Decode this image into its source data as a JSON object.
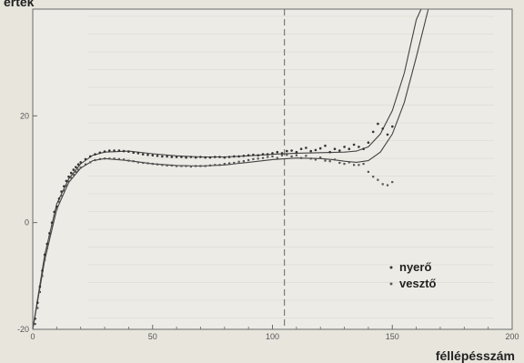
{
  "chart_data": {
    "type": "scatter",
    "ylabel_top": "érték",
    "xlabel": "féllépésszám",
    "xlim": [
      0,
      200
    ],
    "ylim": [
      -20,
      40
    ],
    "x_ticks": [
      0,
      50,
      100,
      150,
      200
    ],
    "y_ticks": [
      -20,
      0,
      20
    ],
    "marker_x": 105,
    "series": [
      {
        "name": "nyerő",
        "points": [
          [
            1,
            -18
          ],
          [
            2,
            -15
          ],
          [
            3,
            -12
          ],
          [
            4,
            -9
          ],
          [
            5,
            -6
          ],
          [
            6,
            -4
          ],
          [
            7,
            -2
          ],
          [
            8,
            0
          ],
          [
            9,
            2
          ],
          [
            10,
            3
          ],
          [
            11,
            4.5
          ],
          [
            12,
            5.8
          ],
          [
            13,
            6.8
          ],
          [
            14,
            7.8
          ],
          [
            15,
            8.6
          ],
          [
            16,
            9.3
          ],
          [
            17,
            9.9
          ],
          [
            18,
            10.4
          ],
          [
            19,
            10.9
          ],
          [
            20,
            11.3
          ],
          [
            22,
            11.9
          ],
          [
            24,
            12.4
          ],
          [
            26,
            12.8
          ],
          [
            28,
            13.1
          ],
          [
            30,
            13.3
          ],
          [
            32,
            13.5
          ],
          [
            34,
            13.5
          ],
          [
            36,
            13.5
          ],
          [
            38,
            13.4
          ],
          [
            40,
            13.3
          ],
          [
            42,
            13.1
          ],
          [
            44,
            13
          ],
          [
            46,
            12.8
          ],
          [
            48,
            12.7
          ],
          [
            50,
            12.6
          ],
          [
            52,
            12.5
          ],
          [
            54,
            12.4
          ],
          [
            56,
            12.4
          ],
          [
            58,
            12.3
          ],
          [
            60,
            12.3
          ],
          [
            62,
            12.3
          ],
          [
            64,
            12.2
          ],
          [
            66,
            12.3
          ],
          [
            68,
            12.2
          ],
          [
            70,
            12.3
          ],
          [
            72,
            12.2
          ],
          [
            74,
            12.2
          ],
          [
            76,
            12.3
          ],
          [
            78,
            12.3
          ],
          [
            80,
            12.2
          ],
          [
            82,
            12.3
          ],
          [
            84,
            12.4
          ],
          [
            86,
            12.4
          ],
          [
            88,
            12.5
          ],
          [
            90,
            12.6
          ],
          [
            92,
            12.7
          ],
          [
            94,
            12.6
          ],
          [
            96,
            12.8
          ],
          [
            98,
            12.8
          ],
          [
            100,
            13
          ],
          [
            102,
            13.2
          ],
          [
            104,
            13
          ],
          [
            106,
            13.4
          ],
          [
            108,
            13.5
          ],
          [
            110,
            13.2
          ],
          [
            112,
            13.8
          ],
          [
            114,
            14
          ],
          [
            116,
            13.4
          ],
          [
            118,
            13.6
          ],
          [
            120,
            13.9
          ],
          [
            122,
            14.4
          ],
          [
            124,
            13.2
          ],
          [
            126,
            13.8
          ],
          [
            128,
            13.5
          ],
          [
            130,
            14.2
          ],
          [
            132,
            13.8
          ],
          [
            134,
            14.6
          ],
          [
            136,
            14.2
          ],
          [
            138,
            13.8
          ],
          [
            140,
            15
          ],
          [
            142,
            17
          ],
          [
            144,
            18.5
          ],
          [
            146,
            17.6
          ],
          [
            148,
            16.5
          ],
          [
            150,
            18
          ]
        ],
        "fit_curve": [
          [
            0,
            -20
          ],
          [
            5,
            -6
          ],
          [
            10,
            3.5
          ],
          [
            15,
            8.2
          ],
          [
            20,
            11
          ],
          [
            25,
            12.6
          ],
          [
            30,
            13.2
          ],
          [
            40,
            13.4
          ],
          [
            50,
            12.9
          ],
          [
            60,
            12.5
          ],
          [
            70,
            12.3
          ],
          [
            80,
            12.3
          ],
          [
            90,
            12.5
          ],
          [
            100,
            12.8
          ],
          [
            110,
            13
          ],
          [
            120,
            13.1
          ],
          [
            130,
            13.2
          ],
          [
            135,
            13.4
          ],
          [
            140,
            14.2
          ],
          [
            145,
            16.6
          ],
          [
            150,
            21
          ],
          [
            155,
            28
          ],
          [
            160,
            38
          ],
          [
            162,
            43
          ]
        ]
      },
      {
        "name": "vesztő",
        "points": [
          [
            1,
            -19
          ],
          [
            2,
            -16
          ],
          [
            3,
            -13
          ],
          [
            4,
            -10
          ],
          [
            5,
            -7
          ],
          [
            6,
            -4.8
          ],
          [
            7,
            -2.6
          ],
          [
            8,
            -0.6
          ],
          [
            9,
            1.2
          ],
          [
            10,
            2.6
          ],
          [
            11,
            3.9
          ],
          [
            12,
            5
          ],
          [
            13,
            6
          ],
          [
            14,
            6.9
          ],
          [
            15,
            7.7
          ],
          [
            16,
            8.4
          ],
          [
            17,
            9
          ],
          [
            18,
            9.5
          ],
          [
            19,
            9.9
          ],
          [
            20,
            10.3
          ],
          [
            22,
            10.9
          ],
          [
            24,
            11.3
          ],
          [
            26,
            11.7
          ],
          [
            28,
            11.9
          ],
          [
            30,
            12
          ],
          [
            32,
            12
          ],
          [
            34,
            12
          ],
          [
            36,
            11.9
          ],
          [
            38,
            11.8
          ],
          [
            40,
            11.6
          ],
          [
            42,
            11.5
          ],
          [
            44,
            11.3
          ],
          [
            46,
            11.2
          ],
          [
            48,
            11.1
          ],
          [
            50,
            11
          ],
          [
            52,
            10.9
          ],
          [
            54,
            10.8
          ],
          [
            56,
            10.7
          ],
          [
            58,
            10.7
          ],
          [
            60,
            10.6
          ],
          [
            62,
            10.6
          ],
          [
            64,
            10.6
          ],
          [
            66,
            10.5
          ],
          [
            68,
            10.6
          ],
          [
            70,
            10.6
          ],
          [
            72,
            10.6
          ],
          [
            74,
            10.7
          ],
          [
            76,
            10.8
          ],
          [
            78,
            10.8
          ],
          [
            80,
            11
          ],
          [
            82,
            11.1
          ],
          [
            84,
            11.2
          ],
          [
            86,
            11.4
          ],
          [
            88,
            11.5
          ],
          [
            90,
            11.7
          ],
          [
            92,
            11.9
          ],
          [
            94,
            12
          ],
          [
            96,
            12.1
          ],
          [
            98,
            12.3
          ],
          [
            100,
            12.4
          ],
          [
            102,
            12.1
          ],
          [
            104,
            12.6
          ],
          [
            106,
            12.7
          ],
          [
            108,
            12.4
          ],
          [
            110,
            12.6
          ],
          [
            112,
            12.1
          ],
          [
            114,
            12.5
          ],
          [
            116,
            12
          ],
          [
            118,
            11.8
          ],
          [
            120,
            12.2
          ],
          [
            122,
            11.6
          ],
          [
            124,
            11.5
          ],
          [
            126,
            11.8
          ],
          [
            128,
            11.2
          ],
          [
            130,
            11
          ],
          [
            132,
            11.3
          ],
          [
            134,
            10.8
          ],
          [
            136,
            10.8
          ],
          [
            138,
            11
          ],
          [
            140,
            9.5
          ],
          [
            142,
            8.6
          ],
          [
            144,
            8
          ],
          [
            146,
            7.2
          ],
          [
            148,
            7
          ],
          [
            150,
            7.6
          ]
        ],
        "fit_curve": [
          [
            0,
            -21
          ],
          [
            5,
            -7
          ],
          [
            10,
            2.5
          ],
          [
            15,
            7.5
          ],
          [
            20,
            10.2
          ],
          [
            25,
            11.6
          ],
          [
            30,
            12
          ],
          [
            40,
            11.6
          ],
          [
            50,
            11
          ],
          [
            60,
            10.7
          ],
          [
            70,
            10.6
          ],
          [
            80,
            10.8
          ],
          [
            90,
            11.3
          ],
          [
            100,
            11.8
          ],
          [
            110,
            12.1
          ],
          [
            120,
            12
          ],
          [
            125,
            11.8
          ],
          [
            130,
            11.5
          ],
          [
            135,
            11.3
          ],
          [
            140,
            11.6
          ],
          [
            145,
            13.2
          ],
          [
            150,
            16.6
          ],
          [
            155,
            22.5
          ],
          [
            160,
            31
          ],
          [
            165,
            42
          ]
        ]
      }
    ]
  },
  "colors": {
    "background": "#e8e5dd",
    "frame": "#6a6a6a",
    "curve": "#444444",
    "points": "#333333",
    "marker": "#666666"
  }
}
